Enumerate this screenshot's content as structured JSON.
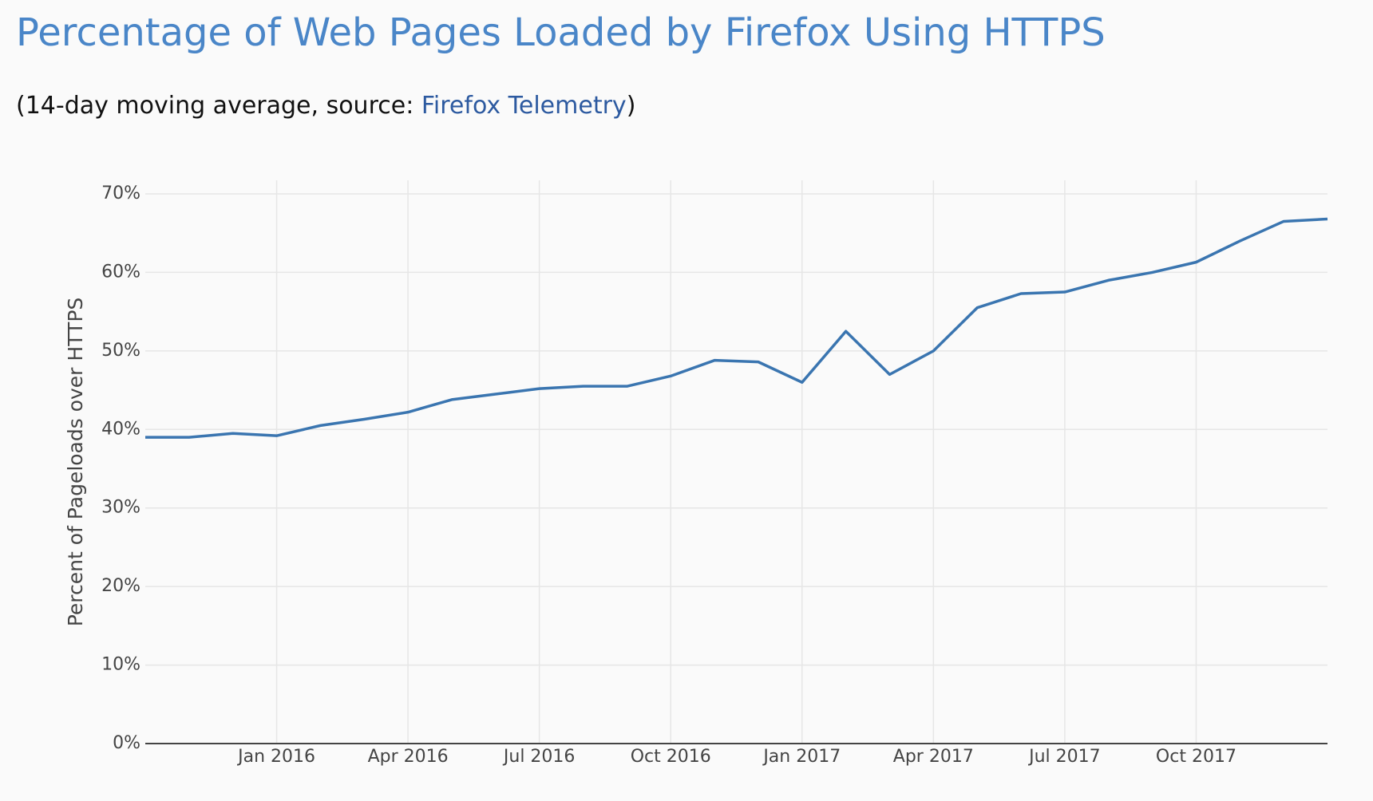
{
  "chart_data": {
    "type": "line",
    "title": "Percentage of Web Pages Loaded by Firefox Using HTTPS",
    "subtitle": {
      "prefix": "(14-day moving average, source: ",
      "link": "Firefox Telemetry",
      "suffix": ")"
    },
    "y_label": "Percent of Pageloads over HTTPS",
    "x": [
      "2015-10",
      "2015-11",
      "2015-12",
      "2016-01",
      "2016-02",
      "2016-03",
      "2016-04",
      "2016-05",
      "2016-06",
      "2016-07",
      "2016-08",
      "2016-09",
      "2016-10",
      "2016-11",
      "2016-12",
      "2017-01",
      "2017-02",
      "2017-03",
      "2017-04",
      "2017-05",
      "2017-06",
      "2017-07",
      "2017-08",
      "2017-09",
      "2017-10",
      "2017-11",
      "2017-12",
      "2018-01"
    ],
    "series": [
      {
        "name": "HTTPS",
        "color": "#3a75b0",
        "values": [
          39,
          39,
          39.5,
          39.2,
          40.5,
          41.3,
          42.2,
          43.8,
          44.5,
          45.2,
          45.5,
          45.5,
          46.8,
          48.8,
          48.6,
          46,
          52.5,
          47,
          50,
          55.5,
          57.3,
          57.5,
          59,
          60,
          61.3,
          64,
          66.5,
          66.8
        ]
      }
    ],
    "xlim": [
      "2015-10",
      "2018-01"
    ],
    "xticks": [
      {
        "value": "2016-01",
        "label": "Jan 2016"
      },
      {
        "value": "2016-04",
        "label": "Apr 2016"
      },
      {
        "value": "2016-07",
        "label": "Jul 2016"
      },
      {
        "value": "2016-10",
        "label": "Oct 2016"
      },
      {
        "value": "2017-01",
        "label": "Jan 2017"
      },
      {
        "value": "2017-04",
        "label": "Apr 2017"
      },
      {
        "value": "2017-07",
        "label": "Jul 2017"
      },
      {
        "value": "2017-10",
        "label": "Oct 2017"
      }
    ],
    "ylim": [
      0,
      70
    ],
    "yticks": [
      {
        "value": 0,
        "label": "0%"
      },
      {
        "value": 10,
        "label": "10%"
      },
      {
        "value": 20,
        "label": "20%"
      },
      {
        "value": 30,
        "label": "30%"
      },
      {
        "value": 40,
        "label": "40%"
      },
      {
        "value": 50,
        "label": "50%"
      },
      {
        "value": 60,
        "label": "60%"
      },
      {
        "value": 70,
        "label": "70%"
      }
    ],
    "grid": true
  }
}
